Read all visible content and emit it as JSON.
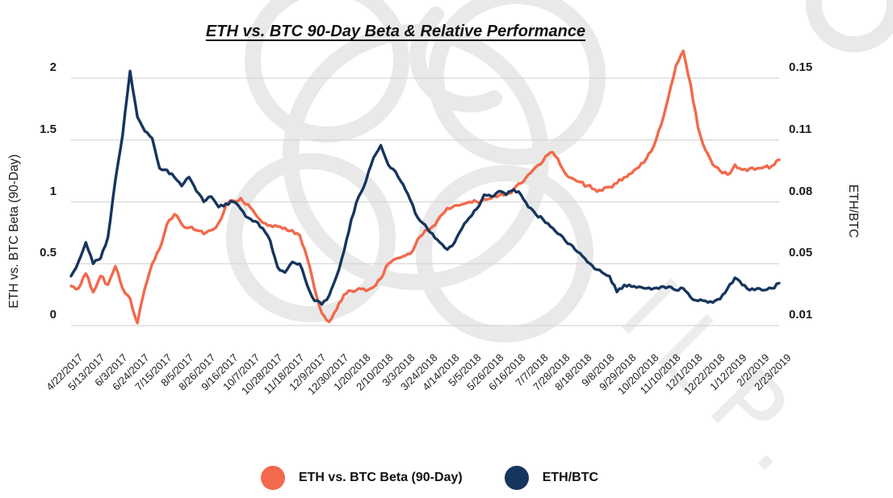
{
  "title": "ETH vs. BTC 90-Day Beta & Relative Performance",
  "colors": {
    "beta_line": "#F2694B",
    "ethbtc_line": "#16355E",
    "gridline": "#D6D6D6",
    "text": "#1C1C1C",
    "watermark_knot": "#E9E9E9",
    "watermark_text": "#ECECEC"
  },
  "watermark": {
    "text": "ILP."
  },
  "legend": {
    "items": [
      {
        "label": "ETH vs. BTC Beta (90-Day)",
        "color": "#F2694B"
      },
      {
        "label": "ETH/BTC",
        "color": "#16355E"
      }
    ]
  },
  "chart_data": {
    "type": "line",
    "title": "ETH vs. BTC 90-Day Beta & Relative Performance",
    "grid": "horizontal",
    "legend_position": "bottom",
    "x_axis": {
      "start_date": "4/22/2017",
      "end_date": "2/23/2019",
      "point_interval_days": 7,
      "tick_labels": [
        "4/22/2017",
        "5/13/2017",
        "6/3/2017",
        "6/24/2017",
        "7/15/2017",
        "8/5/2017",
        "8/26/2017",
        "9/16/2017",
        "10/7/2017",
        "10/28/2017",
        "11/18/2017",
        "12/9/2017",
        "12/30/2017",
        "1/20/2018",
        "2/10/2018",
        "3/3/2018",
        "3/24/2018",
        "4/14/2018",
        "5/5/2018",
        "5/26/2018",
        "6/16/2018",
        "7/7/2018",
        "7/28/2018",
        "8/18/2018",
        "9/8/2018",
        "9/29/2018",
        "10/20/2018",
        "11/10/2018",
        "12/1/2018",
        "12/22/2018",
        "1/12/2019",
        "2/2/2019",
        "2/23/2019"
      ]
    },
    "left_axis": {
      "label": "ETH vs. BTC Beta (90-Day)",
      "range": [
        0,
        2
      ],
      "tick_labels": [
        "2",
        "1.5",
        "1",
        "0.5",
        "0"
      ]
    },
    "right_axis": {
      "label": "ETH/BTC",
      "range": [
        0.01,
        0.15
      ],
      "tick_labels": [
        "0.15",
        "0.11",
        "0.08",
        "0.05",
        "0.01"
      ]
    },
    "series": [
      {
        "name": "ETH vs. BTC Beta (90-Day)",
        "axis": "left",
        "color": "#F2694B",
        "values": [
          0.32,
          0.3,
          0.42,
          0.27,
          0.4,
          0.33,
          0.48,
          0.3,
          0.22,
          0.02,
          0.3,
          0.5,
          0.62,
          0.82,
          0.9,
          0.82,
          0.79,
          0.77,
          0.74,
          0.77,
          0.83,
          0.97,
          1.01,
          1.03,
          0.98,
          0.9,
          0.83,
          0.81,
          0.8,
          0.79,
          0.77,
          0.73,
          0.55,
          0.3,
          0.1,
          0.03,
          0.13,
          0.25,
          0.28,
          0.3,
          0.28,
          0.31,
          0.38,
          0.5,
          0.54,
          0.56,
          0.58,
          0.7,
          0.77,
          0.8,
          0.88,
          0.95,
          0.97,
          0.98,
          1.0,
          1.0,
          1.02,
          1.03,
          1.05,
          1.06,
          1.1,
          1.15,
          1.22,
          1.28,
          1.33,
          1.4,
          1.35,
          1.23,
          1.19,
          1.16,
          1.13,
          1.1,
          1.09,
          1.12,
          1.15,
          1.2,
          1.23,
          1.28,
          1.35,
          1.45,
          1.62,
          1.85,
          2.1,
          2.22,
          1.95,
          1.6,
          1.42,
          1.3,
          1.25,
          1.22,
          1.3,
          1.26,
          1.27,
          1.27,
          1.28,
          1.29,
          1.34
        ]
      },
      {
        "name": "ETH/BTC",
        "axis": "right",
        "color": "#16355E",
        "values": [
          0.038,
          0.046,
          0.057,
          0.045,
          0.048,
          0.06,
          0.092,
          0.118,
          0.154,
          0.128,
          0.12,
          0.116,
          0.099,
          0.098,
          0.094,
          0.089,
          0.094,
          0.086,
          0.08,
          0.083,
          0.077,
          0.079,
          0.08,
          0.076,
          0.071,
          0.069,
          0.065,
          0.058,
          0.043,
          0.04,
          0.046,
          0.045,
          0.033,
          0.024,
          0.022,
          0.027,
          0.038,
          0.052,
          0.07,
          0.083,
          0.092,
          0.105,
          0.112,
          0.101,
          0.097,
          0.09,
          0.081,
          0.071,
          0.067,
          0.062,
          0.057,
          0.053,
          0.057,
          0.065,
          0.071,
          0.076,
          0.084,
          0.083,
          0.086,
          0.084,
          0.087,
          0.084,
          0.077,
          0.073,
          0.07,
          0.066,
          0.062,
          0.058,
          0.055,
          0.051,
          0.046,
          0.042,
          0.04,
          0.038,
          0.029,
          0.033,
          0.032,
          0.032,
          0.031,
          0.031,
          0.032,
          0.032,
          0.03,
          0.031,
          0.026,
          0.024,
          0.024,
          0.023,
          0.025,
          0.031,
          0.037,
          0.033,
          0.03,
          0.031,
          0.03,
          0.031,
          0.034
        ]
      }
    ]
  }
}
